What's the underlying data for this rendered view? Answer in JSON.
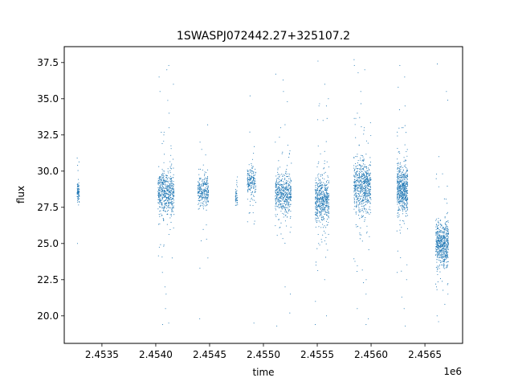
{
  "chart_data": {
    "type": "scatter",
    "title": "1SWASPJ072442.27+325107.2",
    "xlabel": "time",
    "ylabel": "flux",
    "x_offset_label": "1e6",
    "xlim": [
      2453150,
      2456850
    ],
    "ylim": [
      18.1,
      38.6
    ],
    "x_ticks": [
      2.4535,
      2.454,
      2.4545,
      2.455,
      2.4555,
      2.456,
      2.4565
    ],
    "x_tick_labels": [
      "2.4535",
      "2.4540",
      "2.4545",
      "2.4550",
      "2.4555",
      "2.4560",
      "2.4565"
    ],
    "y_ticks": [
      20.0,
      22.5,
      25.0,
      27.5,
      30.0,
      32.5,
      35.0,
      37.5
    ],
    "y_tick_labels": [
      "20.0",
      "22.5",
      "25.0",
      "27.5",
      "30.0",
      "32.5",
      "35.0",
      "37.5"
    ],
    "grid": false,
    "marker_color": "#1f77b4",
    "season_clusters": [
      {
        "x_start": 2453270,
        "x_end": 2453290,
        "y_center": 28.6,
        "y_spread": 0.6,
        "n_points": 90,
        "outliers": [
          30.9,
          25.0,
          30.4
        ]
      },
      {
        "x_start": 2454020,
        "x_end": 2454170,
        "y_center": 28.5,
        "y_spread": 1.3,
        "n_points": 520,
        "outliers": [
          37.0,
          36.5,
          35.5,
          34.0,
          33.0,
          32.5,
          31.9,
          22.0,
          21.5,
          20.5,
          19.5,
          19.4,
          23.0,
          24.0,
          36.0,
          37.3
        ]
      },
      {
        "x_start": 2454390,
        "x_end": 2454490,
        "y_center": 28.6,
        "y_spread": 0.9,
        "n_points": 260,
        "outliers": [
          33.2,
          31.5,
          24.0,
          23.3,
          19.8,
          32.0,
          25.3
        ]
      },
      {
        "x_start": 2454740,
        "x_end": 2454760,
        "y_center": 28.2,
        "y_spread": 0.6,
        "n_points": 45,
        "outliers": [
          29.6
        ]
      },
      {
        "x_start": 2454850,
        "x_end": 2454930,
        "y_center": 29.3,
        "y_spread": 0.8,
        "n_points": 180,
        "outliers": [
          35.2,
          32.7,
          19.5,
          26.5
        ]
      },
      {
        "x_start": 2455110,
        "x_end": 2455260,
        "y_center": 28.4,
        "y_spread": 1.2,
        "n_points": 480,
        "outliers": [
          36.7,
          36.3,
          34.8,
          33.0,
          21.5,
          20.2,
          19.3,
          22.0,
          35.5,
          32.0
        ]
      },
      {
        "x_start": 2455480,
        "x_end": 2455610,
        "y_center": 28.0,
        "y_spread": 1.4,
        "n_points": 520,
        "outliers": [
          37.6,
          36.0,
          34.5,
          33.5,
          21.0,
          20.0,
          19.4,
          22.5,
          35.0,
          23.5
        ]
      },
      {
        "x_start": 2455840,
        "x_end": 2456000,
        "y_center": 28.9,
        "y_spread": 1.6,
        "n_points": 640,
        "outliers": [
          37.7,
          37.3,
          36.8,
          35.5,
          34.0,
          21.5,
          20.5,
          19.4,
          19.8,
          22.5,
          37.0,
          33.0
        ]
      },
      {
        "x_start": 2456240,
        "x_end": 2456340,
        "y_center": 28.7,
        "y_spread": 1.4,
        "n_points": 560,
        "outliers": [
          37.3,
          36.5,
          35.8,
          34.5,
          33.0,
          21.3,
          20.5,
          19.3,
          22.5,
          23.0
        ]
      },
      {
        "x_start": 2456600,
        "x_end": 2456720,
        "y_center": 25.0,
        "y_spread": 1.3,
        "n_points": 560,
        "outliers": [
          37.4,
          35.5,
          34.9,
          31.0,
          29.8,
          20.0,
          19.6,
          20.8,
          21.5,
          22.0
        ]
      }
    ]
  }
}
